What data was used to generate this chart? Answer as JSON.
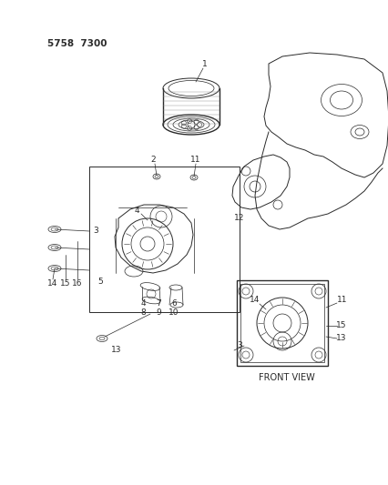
{
  "background_color": "#ffffff",
  "diagram_color": "#1a1a1a",
  "header_text": "5758  7300",
  "header_fontsize": 7.5,
  "front_view_text": "FRONT VIEW",
  "label_fontsize": 6.5,
  "figsize": [
    4.27,
    5.33
  ],
  "dpi": 100,
  "line_color": "#2a2a2a",
  "light_gray": "#888888"
}
